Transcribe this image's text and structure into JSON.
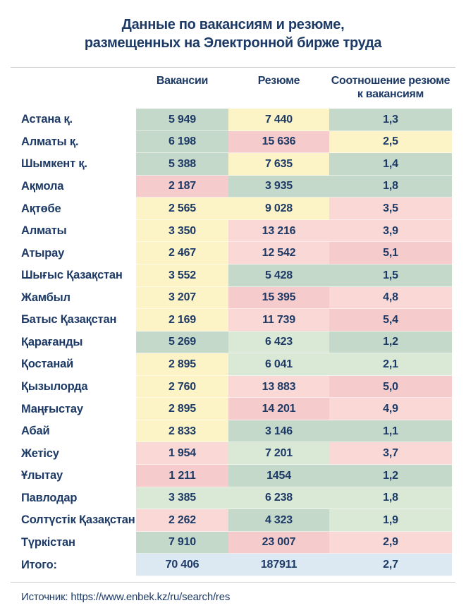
{
  "title": "Данные по вакансиям и резюме,\nразмещенных на Электронной бирже труда",
  "source": "Источник: https://www.enbek.kz/ru/search/res",
  "palette": {
    "g1": "#c5d9cb",
    "g2": "#d9e9d5",
    "y": "#fcf4c6",
    "p1": "#f9d8d6",
    "p2": "#f5cbcb",
    "b": "#dce8f2",
    "text": "#1d3a66",
    "rule": "#cccccc"
  },
  "chart_data": {
    "type": "table",
    "title": "Данные по вакансиям и резюме, размещенных на Электронной бирже труда",
    "columns": [
      "",
      "Вакансии",
      "Резюме",
      "Соотношение резюме к вакансиям"
    ],
    "headers": {
      "vacancies": "Вакансии",
      "resumes": "Резюме",
      "ratio": "Соотношение резюме к вакансиям"
    },
    "rows": [
      {
        "region": "Астана қ.",
        "vacancies": "5 949",
        "resumes": "7 440",
        "ratio": "1,3",
        "colors": [
          "g1",
          "y",
          "g1"
        ]
      },
      {
        "region": "Алматы қ.",
        "vacancies": "6 198",
        "resumes": "15 636",
        "ratio": "2,5",
        "colors": [
          "g1",
          "p2",
          "y"
        ]
      },
      {
        "region": "Шымкент қ.",
        "vacancies": "5 388",
        "resumes": "7 635",
        "ratio": "1,4",
        "colors": [
          "g1",
          "y",
          "g1"
        ]
      },
      {
        "region": "Ақмола",
        "vacancies": "2 187",
        "resumes": "3 935",
        "ratio": "1,8",
        "colors": [
          "p2",
          "g1",
          "g1"
        ]
      },
      {
        "region": "Ақтөбе",
        "vacancies": "2 565",
        "resumes": "9 028",
        "ratio": "3,5",
        "colors": [
          "y",
          "y",
          "p1"
        ]
      },
      {
        "region": "Алматы",
        "vacancies": "3 350",
        "resumes": "13 216",
        "ratio": "3,9",
        "colors": [
          "y",
          "p1",
          "p1"
        ]
      },
      {
        "region": "Атырау",
        "vacancies": "2 467",
        "resumes": "12 542",
        "ratio": "5,1",
        "colors": [
          "y",
          "p1",
          "p2"
        ]
      },
      {
        "region": "Шығыс Қазақстан",
        "vacancies": "3 552",
        "resumes": "5 428",
        "ratio": "1,5",
        "colors": [
          "y",
          "g1",
          "g1"
        ]
      },
      {
        "region": "Жамбыл",
        "vacancies": "3 207",
        "resumes": "15 395",
        "ratio": "4,8",
        "colors": [
          "y",
          "p2",
          "p1"
        ]
      },
      {
        "region": "Батыс Қазақстан",
        "vacancies": "2 169",
        "resumes": "11 739",
        "ratio": "5,4",
        "colors": [
          "y",
          "p1",
          "p2"
        ]
      },
      {
        "region": "Қарағанды",
        "vacancies": "5 269",
        "resumes": "6 423",
        "ratio": "1,2",
        "colors": [
          "g1",
          "g2",
          "g1"
        ]
      },
      {
        "region": "Қостанай",
        "vacancies": "2 895",
        "resumes": "6 041",
        "ratio": "2,1",
        "colors": [
          "y",
          "g2",
          "g2"
        ]
      },
      {
        "region": "Қызылорда",
        "vacancies": "2 760",
        "resumes": "13 883",
        "ratio": "5,0",
        "colors": [
          "y",
          "p1",
          "p2"
        ]
      },
      {
        "region": "Маңғыстау",
        "vacancies": "2 895",
        "resumes": "14 201",
        "ratio": "4,9",
        "colors": [
          "y",
          "p2",
          "p1"
        ]
      },
      {
        "region": "Абай",
        "vacancies": "2 833",
        "resumes": "3 146",
        "ratio": "1,1",
        "colors": [
          "y",
          "g1",
          "g1"
        ]
      },
      {
        "region": "Жетісу",
        "vacancies": "1 954",
        "resumes": "7 201",
        "ratio": "3,7",
        "colors": [
          "p1",
          "g2",
          "p1"
        ]
      },
      {
        "region": "Ұлытау",
        "vacancies": "1 211",
        "resumes": "1454",
        "ratio": "1,2",
        "colors": [
          "p2",
          "g1",
          "g1"
        ]
      },
      {
        "region": "Павлодар",
        "vacancies": "3 385",
        "resumes": "6 238",
        "ratio": "1,8",
        "colors": [
          "g2",
          "g2",
          "g2"
        ]
      },
      {
        "region": "Солтүстік Қазақстан",
        "vacancies": "2 262",
        "resumes": "4 323",
        "ratio": "1,9",
        "colors": [
          "p1",
          "g1",
          "g2"
        ]
      },
      {
        "region": "Түркістан",
        "vacancies": "7 910",
        "resumes": "23 007",
        "ratio": "2,9",
        "colors": [
          "g1",
          "p2",
          "p1"
        ]
      },
      {
        "region": "Итого:",
        "vacancies": "70 406",
        "resumes": "187911",
        "ratio": "2,7",
        "colors": [
          "b",
          "b",
          "b"
        ],
        "is_total": true
      }
    ]
  }
}
